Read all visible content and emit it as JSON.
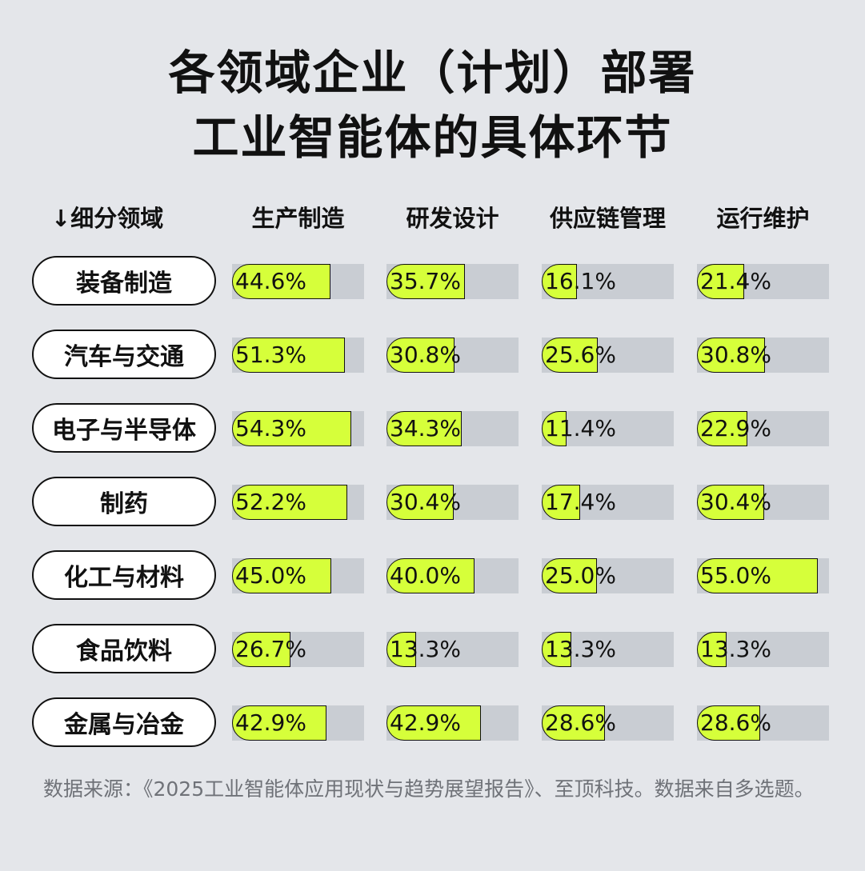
{
  "title_line1": "各领域企业（计划）部署",
  "title_line2": "工业智能体的具体环节",
  "chart_data": {
    "type": "bar",
    "title": "各领域企业（计划）部署工业智能体的具体环节",
    "row_header": "↓细分领域",
    "columns": [
      "生产制造",
      "研发设计",
      "供应链管理",
      "运行维护"
    ],
    "categories": [
      "装备制造",
      "汽车与交通",
      "电子与半导体",
      "制药",
      "化工与材料",
      "食品饮料",
      "金属与冶金"
    ],
    "value_labels": [
      [
        "44.6%",
        "35.7%",
        "16.1%",
        "21.4%"
      ],
      [
        "51.3%",
        "30.8%",
        "25.6%",
        "30.8%"
      ],
      [
        "54.3%",
        "34.3%",
        "11.4%",
        "22.9%"
      ],
      [
        "52.2%",
        "30.4%",
        "17.4%",
        "30.4%"
      ],
      [
        "45.0%",
        "40.0%",
        "25.0%",
        "55.0%"
      ],
      [
        "26.7%",
        "13.3%",
        "13.3%",
        "13.3%"
      ],
      [
        "42.9%",
        "42.9%",
        "28.6%",
        "28.6%"
      ]
    ],
    "values": [
      [
        44.6,
        35.7,
        16.1,
        21.4
      ],
      [
        51.3,
        30.8,
        25.6,
        30.8
      ],
      [
        54.3,
        34.3,
        11.4,
        22.9
      ],
      [
        52.2,
        30.4,
        17.4,
        30.4
      ],
      [
        45.0,
        40.0,
        25.0,
        55.0
      ],
      [
        26.7,
        13.3,
        13.3,
        13.3
      ],
      [
        42.9,
        42.9,
        28.6,
        28.6
      ]
    ],
    "xlim": [
      0,
      60
    ]
  },
  "source": "数据来源：《2025工业智能体应用现状与趋势展望报告》、至顶科技。数据来自多选题。",
  "colors": {
    "background": "#e4e6ea",
    "bar_fill": "#d6ff3a",
    "bar_track": "#c9cdd3",
    "outline": "#111111",
    "source_text": "#6f7278"
  }
}
